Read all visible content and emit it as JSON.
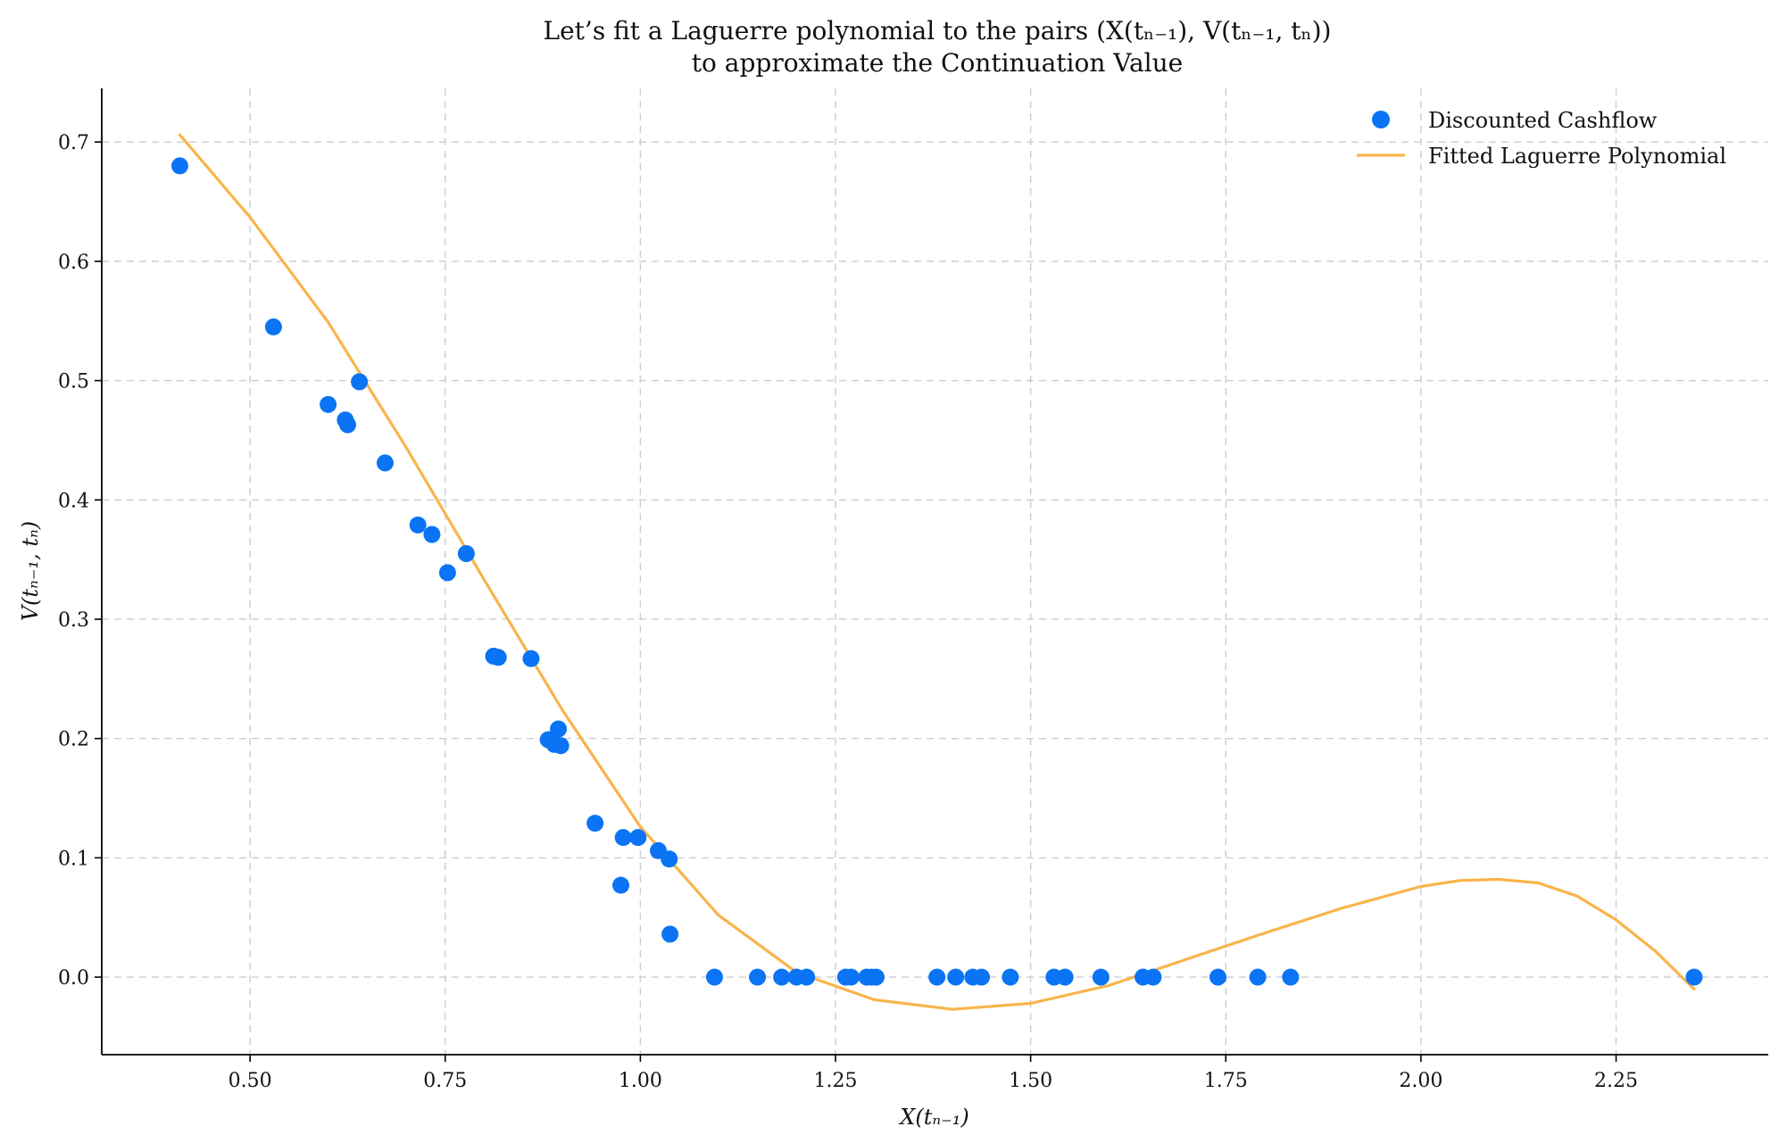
{
  "chart_data": {
    "type": "scatter",
    "title_line1": "Let’s fit a Laguerre polynomial to the pairs (X(tₙ₋₁), V(tₙ₋₁, tₙ))",
    "title_line2": "to approximate the Continuation Value",
    "xlabel": "X(tₙ₋₁)",
    "ylabel": "V(tₙ₋₁, tₙ)",
    "xlim": [
      0.31,
      2.445
    ],
    "ylim": [
      -0.065,
      0.745
    ],
    "xticks": [
      0.5,
      0.75,
      1.0,
      1.25,
      1.5,
      1.75,
      2.0,
      2.25
    ],
    "xtick_labels": [
      "0.50",
      "0.75",
      "1.00",
      "1.25",
      "1.50",
      "1.75",
      "2.00",
      "2.25"
    ],
    "yticks": [
      0.0,
      0.1,
      0.2,
      0.3,
      0.4,
      0.5,
      0.6,
      0.7
    ],
    "ytick_labels": [
      "0.0",
      "0.1",
      "0.2",
      "0.3",
      "0.4",
      "0.5",
      "0.6",
      "0.7"
    ],
    "grid": true,
    "legend_position": "top-right",
    "series": [
      {
        "name": "Discounted Cashflow",
        "kind": "scatter",
        "color": "#0a74f5",
        "points": [
          [
            0.41,
            0.68
          ],
          [
            0.53,
            0.545
          ],
          [
            0.6,
            0.48
          ],
          [
            0.622,
            0.467
          ],
          [
            0.625,
            0.463
          ],
          [
            0.64,
            0.499
          ],
          [
            0.673,
            0.431
          ],
          [
            0.715,
            0.379
          ],
          [
            0.733,
            0.371
          ],
          [
            0.753,
            0.339
          ],
          [
            0.777,
            0.355
          ],
          [
            0.812,
            0.269
          ],
          [
            0.818,
            0.268
          ],
          [
            0.86,
            0.267
          ],
          [
            0.882,
            0.199
          ],
          [
            0.89,
            0.195
          ],
          [
            0.895,
            0.208
          ],
          [
            0.898,
            0.194
          ],
          [
            0.942,
            0.129
          ],
          [
            0.975,
            0.077
          ],
          [
            0.978,
            0.117
          ],
          [
            0.997,
            0.117
          ],
          [
            1.023,
            0.106
          ],
          [
            1.037,
            0.099
          ],
          [
            1.038,
            0.036
          ],
          [
            1.095,
            0.0
          ],
          [
            1.15,
            0.0
          ],
          [
            1.181,
            0.0
          ],
          [
            1.2,
            0.0
          ],
          [
            1.213,
            0.0
          ],
          [
            1.263,
            0.0
          ],
          [
            1.27,
            0.0
          ],
          [
            1.29,
            0.0
          ],
          [
            1.296,
            0.0
          ],
          [
            1.302,
            0.0
          ],
          [
            1.38,
            0.0
          ],
          [
            1.404,
            0.0
          ],
          [
            1.426,
            0.0
          ],
          [
            1.437,
            0.0
          ],
          [
            1.474,
            0.0
          ],
          [
            1.53,
            0.0
          ],
          [
            1.544,
            0.0
          ],
          [
            1.59,
            0.0
          ],
          [
            1.644,
            0.0
          ],
          [
            1.657,
            0.0
          ],
          [
            1.74,
            0.0
          ],
          [
            1.791,
            0.0
          ],
          [
            1.833,
            0.0
          ],
          [
            2.35,
            0.0
          ]
        ]
      },
      {
        "name": "Fitted Laguerre Polynomial",
        "kind": "line",
        "color": "#f9b44b",
        "points": [
          [
            0.41,
            0.706
          ],
          [
            0.5,
            0.637
          ],
          [
            0.6,
            0.549
          ],
          [
            0.7,
            0.444
          ],
          [
            0.8,
            0.333
          ],
          [
            0.9,
            0.224
          ],
          [
            1.0,
            0.126
          ],
          [
            1.1,
            0.052
          ],
          [
            1.2,
            0.004
          ],
          [
            1.3,
            -0.019
          ],
          [
            1.4,
            -0.027
          ],
          [
            1.5,
            -0.022
          ],
          [
            1.6,
            -0.007
          ],
          [
            1.7,
            0.015
          ],
          [
            1.8,
            0.037
          ],
          [
            1.9,
            0.058
          ],
          [
            2.0,
            0.076
          ],
          [
            2.05,
            0.081
          ],
          [
            2.1,
            0.082
          ],
          [
            2.15,
            0.079
          ],
          [
            2.2,
            0.068
          ],
          [
            2.25,
            0.048
          ],
          [
            2.3,
            0.022
          ],
          [
            2.35,
            -0.01
          ]
        ]
      }
    ]
  }
}
